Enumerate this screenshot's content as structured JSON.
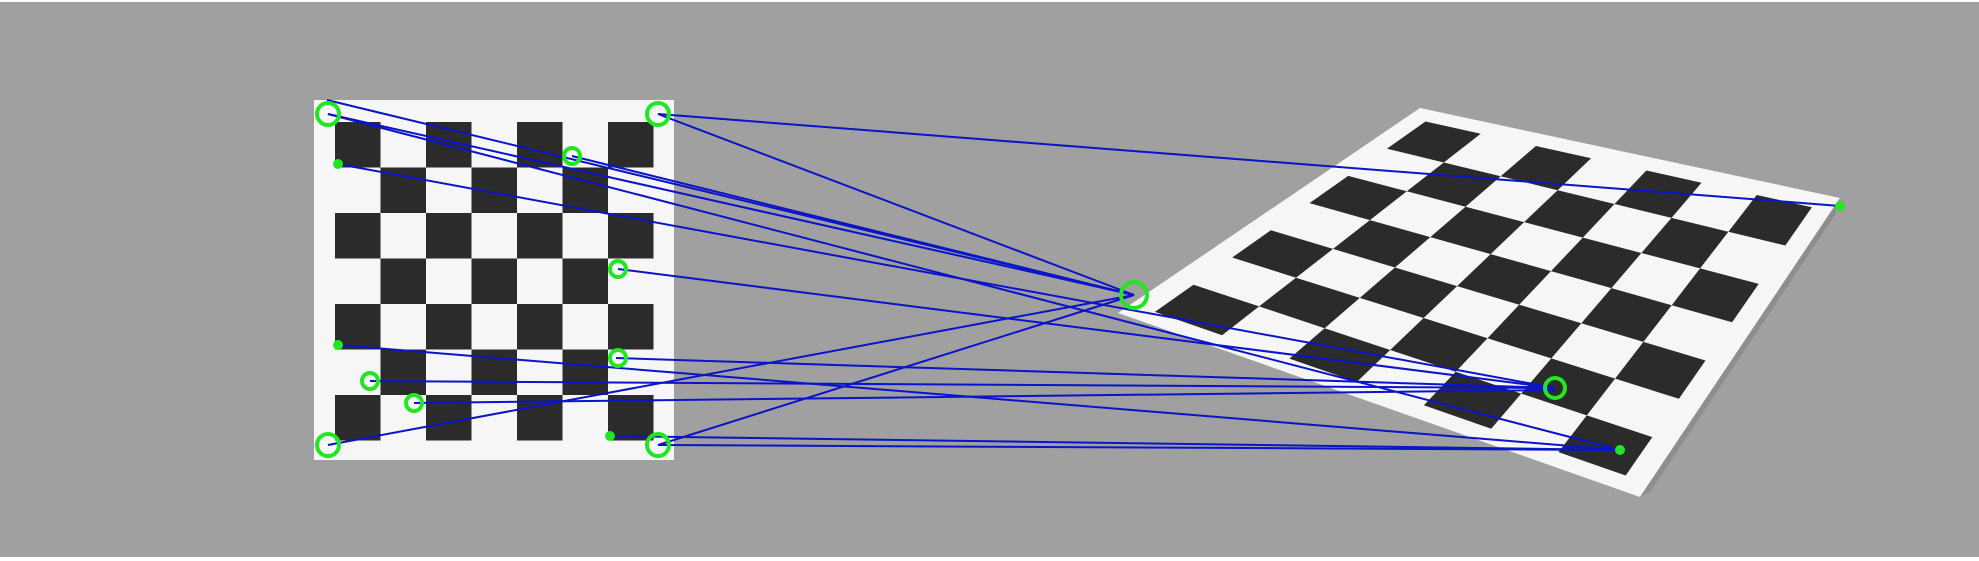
{
  "scene": {
    "background_color": "#a0a0a0",
    "paper_color": "#f6f6f6",
    "square_color": "#2b2b2b",
    "match_line_color": "#0a14c8",
    "keypoint_color": "#22e622"
  },
  "left_board": {
    "type": "checkerboard",
    "dark_squares_in_first_row": 4
  },
  "right_board": {
    "type": "checkerboard-perspective"
  },
  "matches": {
    "count": 16
  }
}
